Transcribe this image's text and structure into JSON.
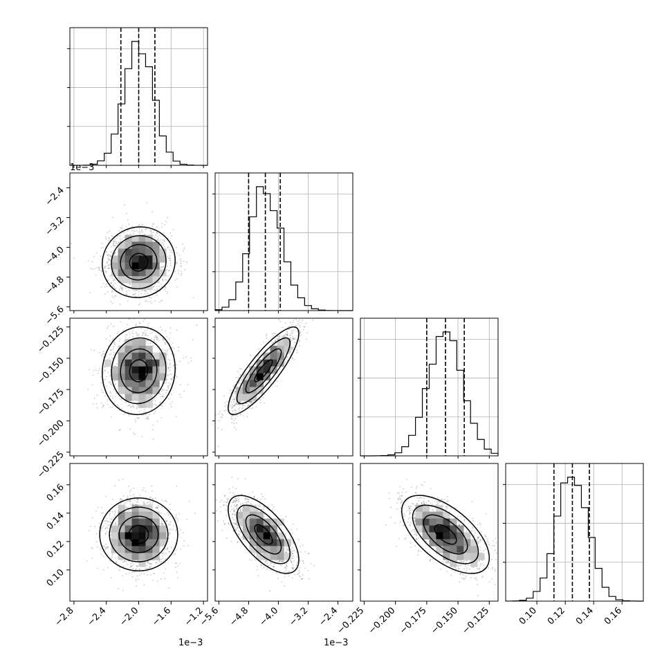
{
  "chart_data": {
    "type": "corner",
    "parameters": [
      {
        "index": 0,
        "range": [
          -2.85,
          -1.15
        ],
        "ticks": [
          -2.8,
          -2.4,
          -2.0,
          -1.6,
          -1.2
        ],
        "tick_labels": [
          "−2.8",
          "−2.4",
          "−2.0",
          "−1.6",
          "−1.2"
        ],
        "offset_text": "1e−3",
        "mean": -2.0,
        "sigma": 0.18,
        "quantiles": [
          -2.22,
          -2.0,
          -1.8
        ]
      },
      {
        "index": 1,
        "range": [
          -5.7,
          -2.0
        ],
        "ticks": [
          -5.6,
          -4.8,
          -4.0,
          -3.2,
          -2.4
        ],
        "tick_labels": [
          "−5.6",
          "−4.8",
          "−4.0",
          "−3.2",
          "−2.4"
        ],
        "offset_text": "1e−3",
        "mean": -4.4,
        "sigma": 0.38,
        "quantiles": [
          -4.8,
          -4.35,
          -3.95
        ]
      },
      {
        "index": 2,
        "range": [
          -0.228,
          -0.118
        ],
        "ticks": [
          -0.225,
          -0.2,
          -0.175,
          -0.15,
          -0.125
        ],
        "tick_labels": [
          "−0.225",
          "−0.200",
          "−0.175",
          "−0.150",
          "−0.125"
        ],
        "offset_text": "",
        "mean": -0.16,
        "sigma": 0.014,
        "quantiles": [
          -0.175,
          -0.16,
          -0.145
        ]
      },
      {
        "index": 3,
        "range": [
          0.078,
          0.175
        ],
        "ticks": [
          0.1,
          0.12,
          0.14,
          0.16
        ],
        "tick_labels": [
          "0.10",
          "0.12",
          "0.14",
          "0.16"
        ],
        "offset_text": "",
        "mean": 0.125,
        "sigma": 0.011,
        "quantiles": [
          0.112,
          0.125,
          0.137
        ]
      }
    ],
    "correlations": [
      {
        "pair": [
          1,
          0
        ],
        "rho": 0.05
      },
      {
        "pair": [
          2,
          0
        ],
        "rho": 0.05
      },
      {
        "pair": [
          2,
          1
        ],
        "rho": 0.85
      },
      {
        "pair": [
          3,
          0
        ],
        "rho": 0.0
      },
      {
        "pair": [
          3,
          1
        ],
        "rho": -0.65
      },
      {
        "pair": [
          3,
          2
        ],
        "rho": -0.6
      }
    ],
    "hist_bins": 20,
    "grid": true,
    "contour_levels": 4
  }
}
